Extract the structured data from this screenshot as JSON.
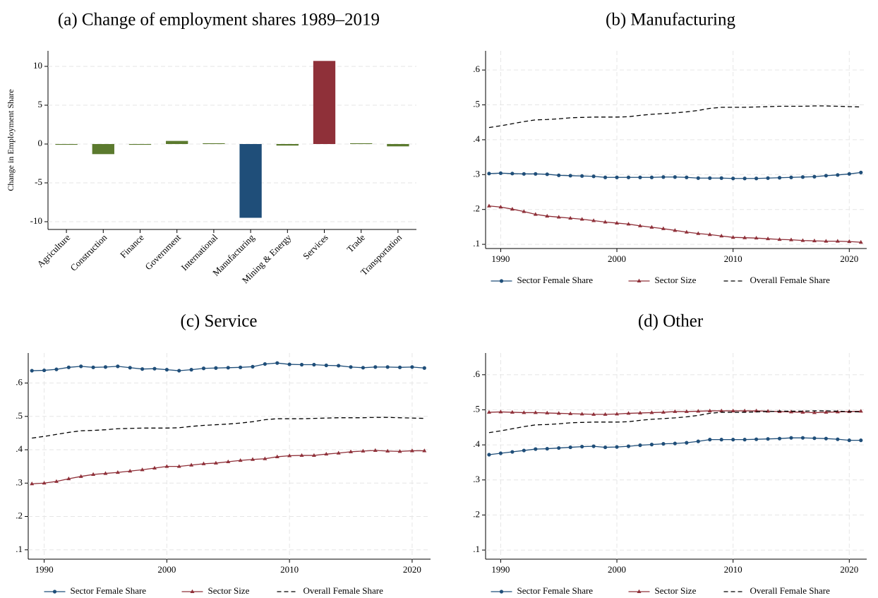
{
  "chart_data": [
    {
      "type": "bar",
      "title": "(a) Change of employment shares 1989–2019",
      "ylabel": "Change in Employment Share",
      "categories": [
        "Agriculture",
        "Construction",
        "Finance",
        "Government",
        "International",
        "Manufacturing",
        "Mining & Energy",
        "Services",
        "Trade",
        "Transportation"
      ],
      "values": [
        -0.1,
        -1.3,
        -0.1,
        0.4,
        0.1,
        -9.5,
        -0.2,
        10.7,
        0.1,
        -0.3
      ],
      "colors": [
        "#5b7a2e",
        "#5b7a2e",
        "#5b7a2e",
        "#5b7a2e",
        "#5b7a2e",
        "#1f4e79",
        "#5b7a2e",
        "#8f3039",
        "#5b7a2e",
        "#5b7a2e"
      ],
      "ylim": [
        -11,
        12
      ],
      "yticks": [
        -10,
        -5,
        0,
        5,
        10
      ],
      "grid": true
    },
    {
      "type": "line",
      "title": "(b) Manufacturing",
      "x": [
        1989,
        1990,
        1991,
        1992,
        1993,
        1994,
        1995,
        1996,
        1997,
        1998,
        1999,
        2000,
        2001,
        2002,
        2003,
        2004,
        2005,
        2006,
        2007,
        2008,
        2009,
        2010,
        2011,
        2012,
        2013,
        2014,
        2015,
        2016,
        2017,
        2018,
        2019,
        2020,
        2021
      ],
      "series": [
        {
          "name": "Sector Female Share",
          "color": "#1f4e79",
          "marker": "circle",
          "values": [
            0.303,
            0.304,
            0.303,
            0.302,
            0.302,
            0.301,
            0.298,
            0.297,
            0.296,
            0.295,
            0.292,
            0.292,
            0.292,
            0.292,
            0.292,
            0.293,
            0.293,
            0.292,
            0.29,
            0.29,
            0.29,
            0.289,
            0.289,
            0.289,
            0.29,
            0.291,
            0.292,
            0.293,
            0.294,
            0.297,
            0.299,
            0.302,
            0.306
          ]
        },
        {
          "name": "Sector Size",
          "color": "#8f3039",
          "marker": "triangle",
          "values": [
            0.21,
            0.207,
            0.201,
            0.194,
            0.186,
            0.181,
            0.178,
            0.175,
            0.172,
            0.168,
            0.164,
            0.161,
            0.158,
            0.153,
            0.149,
            0.145,
            0.14,
            0.135,
            0.131,
            0.128,
            0.124,
            0.12,
            0.119,
            0.118,
            0.116,
            0.114,
            0.113,
            0.111,
            0.11,
            0.109,
            0.109,
            0.108,
            0.106
          ]
        },
        {
          "name": "Overall Female Share",
          "color": "#000000",
          "dashed": true,
          "values": [
            0.435,
            0.44,
            0.446,
            0.452,
            0.457,
            0.458,
            0.46,
            0.463,
            0.464,
            0.465,
            0.465,
            0.465,
            0.466,
            0.47,
            0.473,
            0.475,
            0.477,
            0.48,
            0.484,
            0.49,
            0.493,
            0.493,
            0.493,
            0.494,
            0.495,
            0.496,
            0.496,
            0.496,
            0.497,
            0.497,
            0.496,
            0.495,
            0.494
          ]
        }
      ],
      "xlim": [
        1988.7,
        2021.5
      ],
      "xticks": [
        1990,
        2000,
        2010,
        2020
      ],
      "ylim": [
        0.088,
        0.655
      ],
      "yticks": [
        {
          "value": 0.1,
          "label": ".1"
        },
        {
          "value": 0.2,
          "label": ".2"
        },
        {
          "value": 0.3,
          "label": ".3"
        },
        {
          "value": 0.4,
          "label": ".4"
        },
        {
          "value": 0.5,
          "label": ".5"
        },
        {
          "value": 0.6,
          "label": ".6"
        }
      ],
      "grid": true,
      "legend": "bottom"
    },
    {
      "type": "line",
      "title": "(c) Service",
      "x": [
        1989,
        1990,
        1991,
        1992,
        1993,
        1994,
        1995,
        1996,
        1997,
        1998,
        1999,
        2000,
        2001,
        2002,
        2003,
        2004,
        2005,
        2006,
        2007,
        2008,
        2009,
        2010,
        2011,
        2012,
        2013,
        2014,
        2015,
        2016,
        2017,
        2018,
        2019,
        2020,
        2021
      ],
      "series": [
        {
          "name": "Sector Female Share",
          "color": "#1f4e79",
          "marker": "circle",
          "values": [
            0.637,
            0.638,
            0.641,
            0.647,
            0.65,
            0.647,
            0.648,
            0.65,
            0.646,
            0.642,
            0.643,
            0.64,
            0.637,
            0.64,
            0.644,
            0.645,
            0.646,
            0.647,
            0.649,
            0.657,
            0.66,
            0.656,
            0.655,
            0.655,
            0.653,
            0.652,
            0.648,
            0.646,
            0.648,
            0.648,
            0.647,
            0.648,
            0.645
          ]
        },
        {
          "name": "Sector Size",
          "color": "#8f3039",
          "marker": "triangle",
          "values": [
            0.298,
            0.3,
            0.305,
            0.313,
            0.32,
            0.326,
            0.329,
            0.332,
            0.336,
            0.34,
            0.345,
            0.35,
            0.35,
            0.354,
            0.358,
            0.36,
            0.364,
            0.368,
            0.371,
            0.373,
            0.379,
            0.382,
            0.383,
            0.383,
            0.387,
            0.39,
            0.394,
            0.396,
            0.398,
            0.396,
            0.395,
            0.397,
            0.397
          ]
        },
        {
          "name": "Overall Female Share",
          "color": "#000000",
          "dashed": true,
          "values": [
            0.435,
            0.44,
            0.446,
            0.452,
            0.457,
            0.458,
            0.46,
            0.463,
            0.464,
            0.465,
            0.465,
            0.465,
            0.466,
            0.47,
            0.473,
            0.475,
            0.477,
            0.48,
            0.484,
            0.49,
            0.493,
            0.493,
            0.493,
            0.494,
            0.495,
            0.496,
            0.496,
            0.496,
            0.497,
            0.497,
            0.496,
            0.495,
            0.494
          ]
        }
      ],
      "xlim": [
        1988.7,
        2021.5
      ],
      "xticks": [
        1990,
        2000,
        2010,
        2020
      ],
      "ylim": [
        0.072,
        0.69
      ],
      "yticks": [
        {
          "value": 0.1,
          "label": ".1"
        },
        {
          "value": 0.2,
          "label": ".2"
        },
        {
          "value": 0.3,
          "label": ".3"
        },
        {
          "value": 0.4,
          "label": ".4"
        },
        {
          "value": 0.5,
          "label": ".5"
        },
        {
          "value": 0.6,
          "label": ".6"
        }
      ],
      "grid": true,
      "legend": "bottom"
    },
    {
      "type": "line",
      "title": "(d) Other",
      "x": [
        1989,
        1990,
        1991,
        1992,
        1993,
        1994,
        1995,
        1996,
        1997,
        1998,
        1999,
        2000,
        2001,
        2002,
        2003,
        2004,
        2005,
        2006,
        2007,
        2008,
        2009,
        2010,
        2011,
        2012,
        2013,
        2014,
        2015,
        2016,
        2017,
        2018,
        2019,
        2020,
        2021
      ],
      "series": [
        {
          "name": "Sector Female Share",
          "color": "#1f4e79",
          "marker": "circle",
          "values": [
            0.372,
            0.376,
            0.38,
            0.384,
            0.388,
            0.389,
            0.391,
            0.393,
            0.395,
            0.396,
            0.393,
            0.394,
            0.396,
            0.399,
            0.401,
            0.403,
            0.404,
            0.406,
            0.41,
            0.415,
            0.415,
            0.415,
            0.415,
            0.416,
            0.417,
            0.418,
            0.42,
            0.42,
            0.419,
            0.418,
            0.416,
            0.413,
            0.413
          ]
        },
        {
          "name": "Sector Size",
          "color": "#8f3039",
          "marker": "triangle",
          "values": [
            0.493,
            0.494,
            0.493,
            0.492,
            0.492,
            0.491,
            0.49,
            0.489,
            0.488,
            0.487,
            0.487,
            0.488,
            0.49,
            0.491,
            0.492,
            0.493,
            0.495,
            0.495,
            0.496,
            0.497,
            0.497,
            0.497,
            0.497,
            0.497,
            0.496,
            0.495,
            0.494,
            0.493,
            0.492,
            0.493,
            0.494,
            0.495,
            0.496
          ]
        },
        {
          "name": "Overall Female Share",
          "color": "#000000",
          "dashed": true,
          "values": [
            0.435,
            0.44,
            0.446,
            0.452,
            0.457,
            0.458,
            0.46,
            0.463,
            0.464,
            0.465,
            0.465,
            0.465,
            0.466,
            0.47,
            0.473,
            0.475,
            0.477,
            0.48,
            0.484,
            0.49,
            0.493,
            0.493,
            0.493,
            0.494,
            0.495,
            0.496,
            0.496,
            0.496,
            0.497,
            0.497,
            0.496,
            0.495,
            0.494
          ]
        }
      ],
      "xlim": [
        1988.7,
        2021.5
      ],
      "xticks": [
        1990,
        2000,
        2010,
        2020
      ],
      "ylim": [
        0.074,
        0.662
      ],
      "yticks": [
        {
          "value": 0.1,
          "label": ".1"
        },
        {
          "value": 0.2,
          "label": ".2"
        },
        {
          "value": 0.3,
          "label": ".3"
        },
        {
          "value": 0.4,
          "label": ".4"
        },
        {
          "value": 0.5,
          "label": ".5"
        },
        {
          "value": 0.6,
          "label": ".6"
        }
      ],
      "grid": true,
      "legend": "bottom"
    }
  ]
}
